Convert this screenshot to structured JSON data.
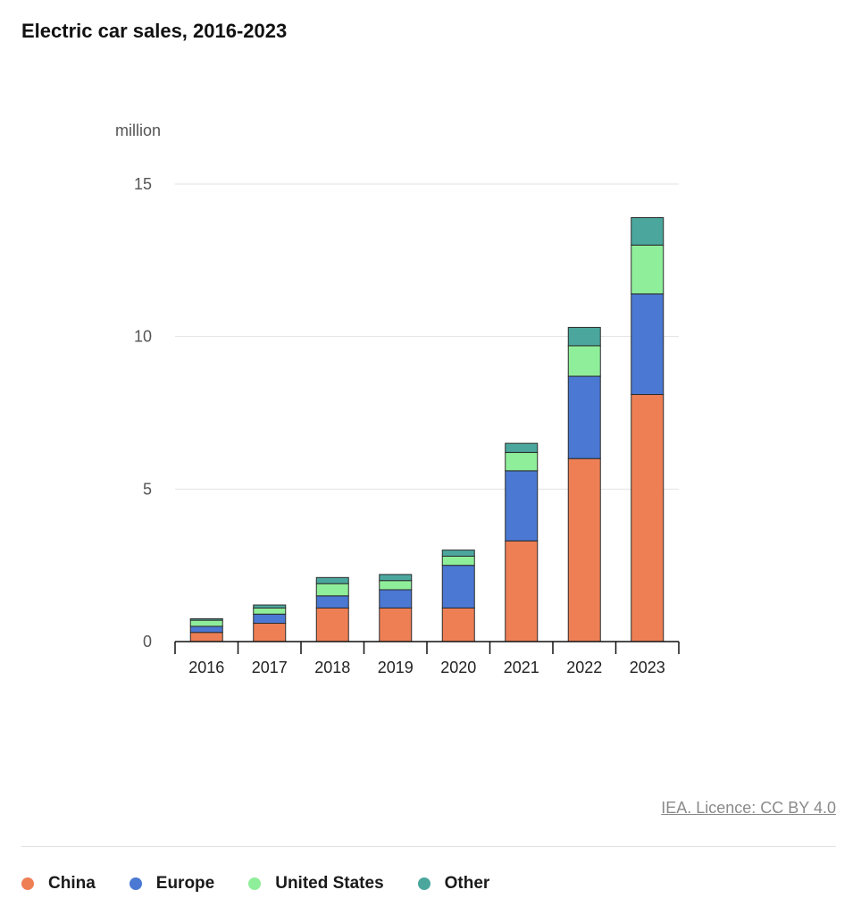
{
  "header": {
    "title": "Electric car sales, 2016-2023"
  },
  "chart_data": {
    "type": "bar",
    "stacked": true,
    "title": "Electric car sales, 2016-2023",
    "ylabel": "million",
    "xlabel": "",
    "ylim": [
      0,
      15
    ],
    "yticks": [
      0,
      5,
      10,
      15
    ],
    "grid": true,
    "legend_position": "bottom-left",
    "categories": [
      "2016",
      "2017",
      "2018",
      "2019",
      "2020",
      "2021",
      "2022",
      "2023"
    ],
    "series": [
      {
        "name": "China",
        "color": "#ee7f55",
        "values": [
          0.3,
          0.6,
          1.1,
          1.1,
          1.1,
          3.3,
          6.0,
          8.1
        ]
      },
      {
        "name": "Europe",
        "color": "#4a78d2",
        "values": [
          0.2,
          0.3,
          0.4,
          0.6,
          1.4,
          2.3,
          2.7,
          3.3
        ]
      },
      {
        "name": "United States",
        "color": "#8fee9a",
        "values": [
          0.2,
          0.2,
          0.4,
          0.3,
          0.3,
          0.6,
          1.0,
          1.6
        ]
      },
      {
        "name": "Other",
        "color": "#4ba79e",
        "values": [
          0.05,
          0.1,
          0.2,
          0.2,
          0.2,
          0.3,
          0.6,
          0.9
        ]
      }
    ]
  },
  "footer": {
    "source": "IEA. Licence: CC BY 4.0"
  }
}
